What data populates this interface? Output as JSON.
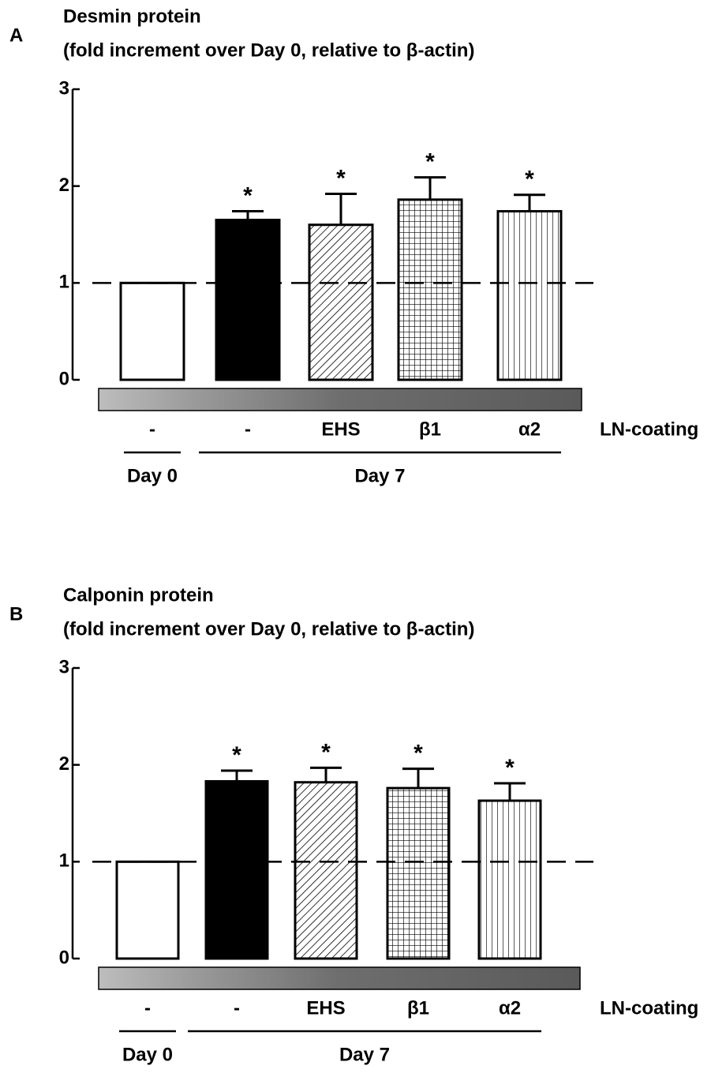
{
  "chart_data": [
    {
      "type": "bar",
      "panel": "A",
      "title": "Desmin protein",
      "subtitle": "(fold increment over Day 0, relative to β-actin)",
      "categories": [
        "-",
        "-",
        "EHS",
        "β1",
        "α2"
      ],
      "category_axis_label": "LN-coating",
      "values": [
        1,
        1.65,
        1.6,
        1.86,
        1.74
      ],
      "errors": [
        null,
        0.09,
        0.32,
        0.23,
        0.17
      ],
      "significance": [
        null,
        "*",
        "*",
        "*",
        "*"
      ],
      "patterns": [
        "none",
        "solid",
        "diagonal",
        "grid",
        "vertical"
      ],
      "groups": [
        {
          "label": "Day 0",
          "count": 1
        },
        {
          "label": "Day 7",
          "count": 4
        }
      ],
      "reference_line": 1,
      "ylim": [
        0,
        3
      ],
      "yticks": [
        0,
        1,
        2,
        3
      ]
    },
    {
      "type": "bar",
      "panel": "B",
      "title": "Calponin protein",
      "subtitle": "(fold increment over Day 0, relative to β-actin)",
      "categories": [
        "-",
        "-",
        "EHS",
        "β1",
        "α2"
      ],
      "category_axis_label": "LN-coating",
      "values": [
        1,
        1.83,
        1.82,
        1.76,
        1.63
      ],
      "errors": [
        null,
        0.11,
        0.15,
        0.2,
        0.18
      ],
      "significance": [
        null,
        "*",
        "*",
        "*",
        "*"
      ],
      "patterns": [
        "none",
        "solid",
        "diagonal",
        "grid",
        "vertical"
      ],
      "groups": [
        {
          "label": "Day 0",
          "count": 1
        },
        {
          "label": "Day 7",
          "count": 4
        }
      ],
      "reference_line": 1,
      "ylim": [
        0,
        3
      ],
      "yticks": [
        0,
        1,
        2,
        3
      ]
    }
  ]
}
